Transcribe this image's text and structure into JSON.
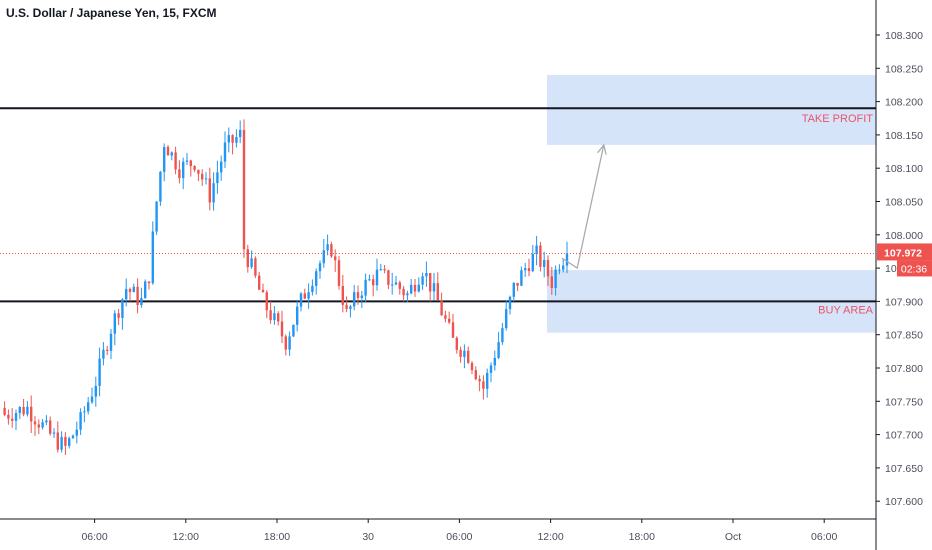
{
  "header": {
    "title": "U.S. Dollar / Japanese Yen, 15, FXCM"
  },
  "colors": {
    "up_candle": "#2196f3",
    "down_candle": "#ef5350",
    "zone_fill": "#d6e4fa",
    "zone_label": "#e8546a",
    "level_line": "#131722",
    "price_line": "#ef5350",
    "price_badge": "#ef5350",
    "arrow": "#a9abb0"
  },
  "chart_data": {
    "type": "candlestick",
    "symbol": "U.S. Dollar / Japanese Yen",
    "interval": "15",
    "source": "FXCM",
    "y_axis": {
      "ylim": [
        107.56,
        108.36
      ],
      "ticks": [
        "108.300",
        "108.250",
        "108.200",
        "108.150",
        "108.100",
        "108.050",
        "108.000",
        "107.950",
        "107.900",
        "107.850",
        "107.800",
        "107.750",
        "107.700",
        "107.650",
        "107.600"
      ]
    },
    "x_axis": {
      "ticks": [
        "06:00",
        "12:00",
        "18:00",
        "30",
        "06:00",
        "12:00",
        "18:00",
        "Oct",
        "06:00"
      ],
      "tick_bar_index": [
        24,
        48,
        72,
        96,
        120,
        144,
        168,
        192,
        216
      ]
    },
    "bars_per_hour": 4,
    "first_bar_time": "03:00",
    "close_path": {
      "bar_index": [
        0,
        6,
        12,
        16,
        20,
        24,
        28,
        32,
        36,
        38,
        40,
        42,
        46,
        50,
        54,
        58,
        62,
        63,
        65,
        68,
        70,
        74,
        78,
        82,
        86,
        90,
        94,
        98,
        102,
        106,
        110,
        114,
        118,
        122,
        126,
        130,
        134,
        138,
        140,
        142,
        144,
        146,
        148
      ],
      "close": [
        107.73,
        107.74,
        107.7,
        107.68,
        107.72,
        107.78,
        107.86,
        107.92,
        107.9,
        107.94,
        108.05,
        108.14,
        108.1,
        108.11,
        108.06,
        108.13,
        108.15,
        107.98,
        107.95,
        107.9,
        107.88,
        107.84,
        107.9,
        107.95,
        107.98,
        107.88,
        107.92,
        107.94,
        107.93,
        107.91,
        107.95,
        107.9,
        107.84,
        107.82,
        107.77,
        107.84,
        107.92,
        107.96,
        107.97,
        107.95,
        107.93,
        107.96,
        107.972
      ]
    },
    "levels": [
      {
        "name": "resistance",
        "price": 108.19
      },
      {
        "name": "support",
        "price": 107.9
      }
    ],
    "zones": [
      {
        "label": "TAKE PROFIT",
        "top": 108.24,
        "bottom": 108.135
      },
      {
        "label": "BUY AREA",
        "top": 107.947,
        "bottom": 107.853
      }
    ],
    "arrow": {
      "points": [
        [
          147,
          107.965
        ],
        [
          151,
          107.95
        ],
        [
          158,
          108.135
        ]
      ]
    },
    "current_price": {
      "value": "107.972",
      "countdown": "02:36",
      "price": 107.972
    }
  }
}
